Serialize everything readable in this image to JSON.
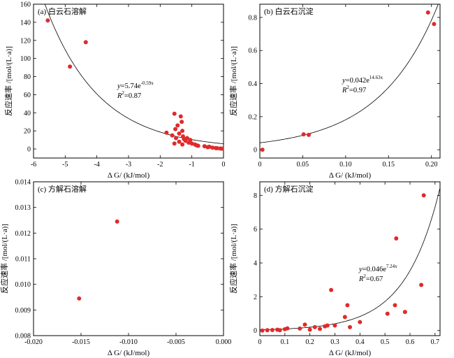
{
  "chart_data": [
    {
      "type": "scatter",
      "title": "(a) 白云石溶解",
      "xlabel": "Δ G/ (kJ/mol)",
      "ylabel": "反应速率 /[mol/(L·a)]",
      "xlim": [
        -6,
        0
      ],
      "ylim": [
        -10,
        160
      ],
      "xticks": [
        "-6",
        "-5",
        "-4",
        "-3",
        "-2",
        "-1",
        "0"
      ],
      "yticks": [
        "0",
        "20",
        "40",
        "60",
        "80",
        "100",
        "120",
        "140",
        "160"
      ],
      "equation": {
        "lhs": "y",
        "rhs": "=5.74e",
        "exp": "-0.59x",
        "r2_label": "R",
        "r2_value": "=0.87"
      },
      "fit": {
        "kind": "exp",
        "a": 5.74,
        "b": -0.59
      },
      "points": [
        {
          "x": -5.55,
          "y": 142
        },
        {
          "x": -4.85,
          "y": 91
        },
        {
          "x": -4.35,
          "y": 118
        },
        {
          "x": -1.8,
          "y": 18
        },
        {
          "x": -1.62,
          "y": 15
        },
        {
          "x": -1.55,
          "y": 39
        },
        {
          "x": -1.52,
          "y": 22
        },
        {
          "x": -1.5,
          "y": 12
        },
        {
          "x": -1.45,
          "y": 26
        },
        {
          "x": -1.4,
          "y": 17
        },
        {
          "x": -1.35,
          "y": 36
        },
        {
          "x": -1.32,
          "y": 30
        },
        {
          "x": -1.3,
          "y": 20
        },
        {
          "x": -1.28,
          "y": 14
        },
        {
          "x": -1.25,
          "y": 11
        },
        {
          "x": -1.2,
          "y": 9
        },
        {
          "x": -1.15,
          "y": 12
        },
        {
          "x": -1.1,
          "y": 7
        },
        {
          "x": -1.05,
          "y": 10
        },
        {
          "x": -1.0,
          "y": 6
        },
        {
          "x": -1.55,
          "y": 6
        },
        {
          "x": -1.4,
          "y": 8
        },
        {
          "x": -1.3,
          "y": 5
        },
        {
          "x": -0.9,
          "y": 5
        },
        {
          "x": -0.85,
          "y": 4
        },
        {
          "x": -0.8,
          "y": 3.5
        },
        {
          "x": -0.6,
          "y": 3
        },
        {
          "x": -0.5,
          "y": 2
        },
        {
          "x": -0.45,
          "y": 2.5
        },
        {
          "x": -0.35,
          "y": 1.5
        },
        {
          "x": -0.25,
          "y": 1
        },
        {
          "x": -0.2,
          "y": 0.8
        },
        {
          "x": -0.1,
          "y": 0.5
        },
        {
          "x": -0.05,
          "y": 0.3
        }
      ]
    },
    {
      "type": "scatter",
      "title": "(b) 白云石沉淀",
      "xlabel": "Δ G/ (kJ/mol)",
      "ylabel": "反应速率 /[mol/(L·a)]",
      "xlim": [
        0,
        0.21
      ],
      "ylim": [
        -0.05,
        0.88
      ],
      "xticks": [
        "0",
        "0.05",
        "0.10",
        "0.15",
        "0.20"
      ],
      "yticks": [
        "0",
        "0.2",
        "0.4",
        "0.6",
        "0.8"
      ],
      "equation": {
        "lhs": "y",
        "rhs": "=0.042e",
        "exp": "14.63x",
        "r2_label": "R",
        "r2_value": "=0.97"
      },
      "fit": {
        "kind": "exp",
        "a": 0.042,
        "b": 14.63
      },
      "points": [
        {
          "x": 0.003,
          "y": 0.0
        },
        {
          "x": 0.051,
          "y": 0.093
        },
        {
          "x": 0.057,
          "y": 0.09
        },
        {
          "x": 0.196,
          "y": 0.83
        },
        {
          "x": 0.203,
          "y": 0.76
        }
      ]
    },
    {
      "type": "scatter",
      "title": "(c) 方解石溶解",
      "xlabel": "Δ G/ (kJ/mol)",
      "ylabel": "反应速率 /[mol/(L·a)]",
      "xlim": [
        -0.02,
        0
      ],
      "ylim": [
        0.008,
        0.014
      ],
      "xticks": [
        "-0.020",
        "-0.015",
        "-0.010",
        "-0.005",
        "0.000"
      ],
      "yticks": [
        "0.008",
        "0.009",
        "0.010",
        "0.011",
        "0.012",
        "0.013",
        "0.014"
      ],
      "points": [
        {
          "x": -0.0152,
          "y": 0.00945
        },
        {
          "x": -0.0112,
          "y": 0.01245
        }
      ]
    },
    {
      "type": "scatter",
      "title": "(d) 方解石沉淀",
      "xlabel": "Δ G/ (kJ/mol)",
      "ylabel": "反应速率 /[mol/(L·a)]",
      "xlim": [
        0,
        0.72
      ],
      "ylim": [
        -0.3,
        8.8
      ],
      "xticks": [
        "0",
        "0.1",
        "0.2",
        "0.3",
        "0.4",
        "0.5",
        "0.6",
        "0.7"
      ],
      "yticks": [
        "0",
        "2",
        "4",
        "6",
        "8"
      ],
      "equation": {
        "lhs": "y",
        "rhs": "=0.046e",
        "exp": "7.24x",
        "r2_label": "R",
        "r2_value": "=0.67"
      },
      "fit": {
        "kind": "exp",
        "a": 0.046,
        "b": 7.24
      },
      "points": [
        {
          "x": 0.01,
          "y": 0.0
        },
        {
          "x": 0.03,
          "y": 0.02
        },
        {
          "x": 0.05,
          "y": 0.03
        },
        {
          "x": 0.07,
          "y": 0.05
        },
        {
          "x": 0.08,
          "y": 0.02
        },
        {
          "x": 0.1,
          "y": 0.08
        },
        {
          "x": 0.11,
          "y": 0.13
        },
        {
          "x": 0.16,
          "y": 0.12
        },
        {
          "x": 0.18,
          "y": 0.35
        },
        {
          "x": 0.2,
          "y": 0.05
        },
        {
          "x": 0.22,
          "y": 0.2
        },
        {
          "x": 0.24,
          "y": 0.1
        },
        {
          "x": 0.26,
          "y": 0.25
        },
        {
          "x": 0.27,
          "y": 0.3
        },
        {
          "x": 0.285,
          "y": 2.4
        },
        {
          "x": 0.3,
          "y": 0.3
        },
        {
          "x": 0.34,
          "y": 0.8
        },
        {
          "x": 0.35,
          "y": 1.5
        },
        {
          "x": 0.36,
          "y": 0.2
        },
        {
          "x": 0.4,
          "y": 0.5
        },
        {
          "x": 0.51,
          "y": 1.0
        },
        {
          "x": 0.54,
          "y": 1.5
        },
        {
          "x": 0.545,
          "y": 5.45
        },
        {
          "x": 0.58,
          "y": 1.1
        },
        {
          "x": 0.645,
          "y": 2.7
        },
        {
          "x": 0.655,
          "y": 8.0
        }
      ]
    }
  ],
  "colors": {
    "points": "#e02a2a",
    "axes": "#000000"
  }
}
